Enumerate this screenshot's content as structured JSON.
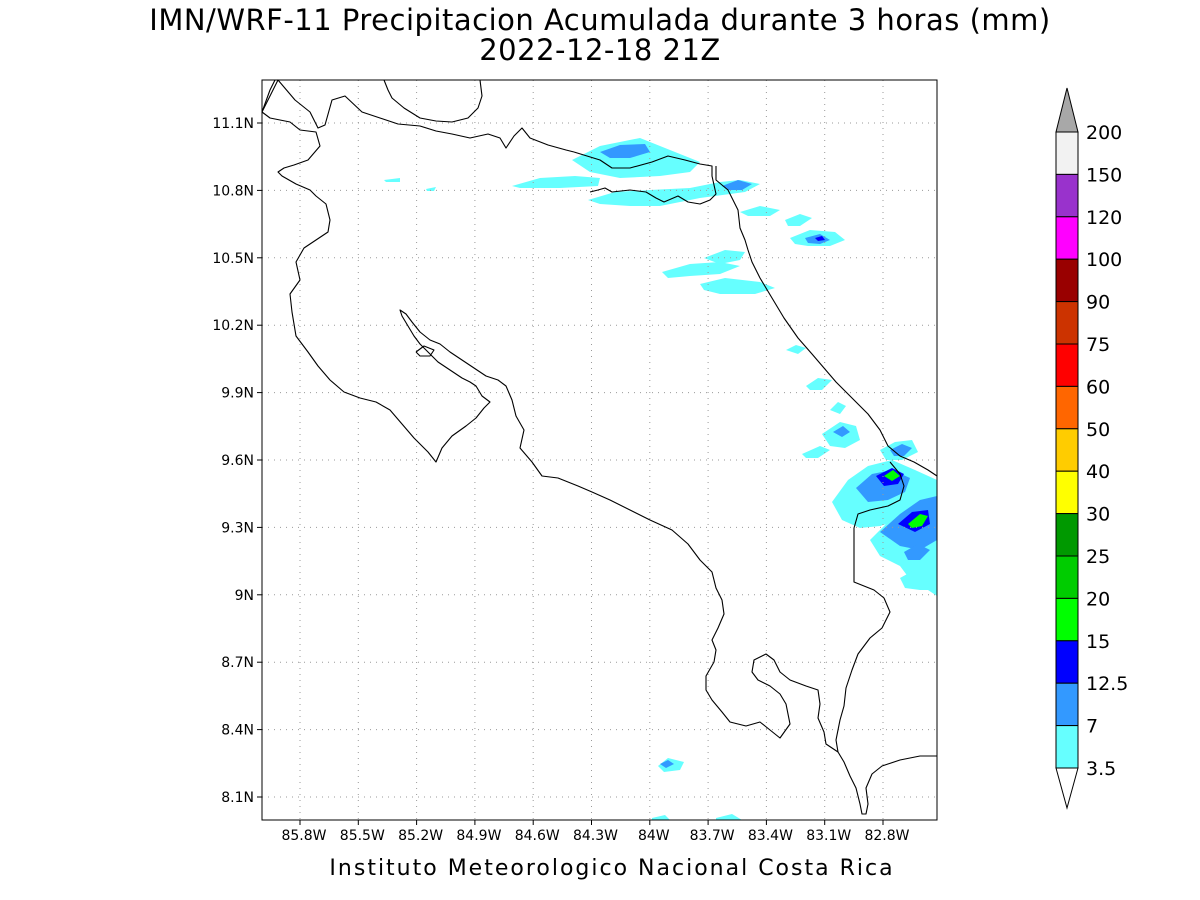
{
  "title": "IMN/WRF-11 Precipitacion Acumulada durante 3 horas (mm)",
  "subtitle": "2022-12-18 21Z",
  "footer": "Instituto Meteorologico Nacional Costa Rica",
  "map": {
    "lon_labels": [
      "85.8W",
      "85.5W",
      "85.2W",
      "84.9W",
      "84.6W",
      "84.3W",
      "84W",
      "83.7W",
      "83.4W",
      "83.1W",
      "82.8W"
    ],
    "lat_labels": [
      "11.1N",
      "10.8N",
      "10.5N",
      "10.2N",
      "9.9N",
      "9.6N",
      "9.3N",
      "9N",
      "8.7N",
      "8.4N",
      "8.1N"
    ],
    "grid": "dotted"
  },
  "colorbar": {
    "labels": [
      "200",
      "150",
      "120",
      "100",
      "90",
      "75",
      "60",
      "50",
      "40",
      "30",
      "25",
      "20",
      "15",
      "12.5",
      "7",
      "3.5"
    ],
    "colors": [
      "#f2f2f2",
      "#9932cc",
      "#ff00ff",
      "#990000",
      "#cc3300",
      "#ff0000",
      "#ff6600",
      "#ffcc00",
      "#ffff00",
      "#009900",
      "#00cc00",
      "#00ff00",
      "#0000ff",
      "#3399ff",
      "#66ffff"
    ],
    "over_color": "#a8a8a8",
    "under_color": "#ffffff"
  },
  "precip_colors": {
    "light": "#66ffff",
    "moderate": "#3399ff",
    "heavy": "#0000ff",
    "very_heavy": "#00ff00"
  }
}
